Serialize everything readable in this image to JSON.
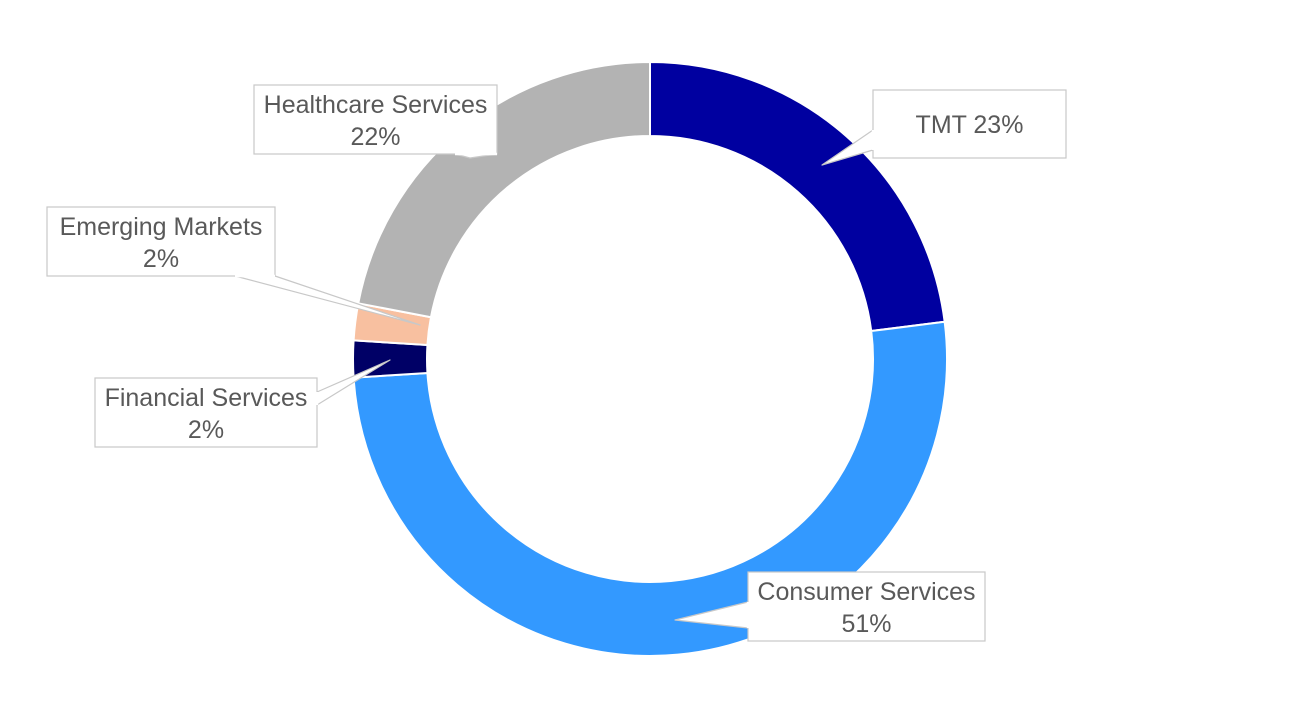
{
  "chart_data": {
    "type": "pie",
    "variant": "donut",
    "title": "",
    "legend": "none",
    "data_labels": "callouts with category name and percentage",
    "slices": [
      {
        "category": "TMT",
        "value": 23,
        "label": "23%",
        "color": "#0000A0"
      },
      {
        "category": "Consumer Services",
        "value": 51,
        "label": "51%",
        "color": "#3399FF"
      },
      {
        "category": "Financial Services",
        "value": 2,
        "label": "2%",
        "color": "#000066"
      },
      {
        "category": "Emerging Markets",
        "value": 2,
        "label": "2%",
        "color": "#F8C0A0"
      },
      {
        "category": "Healthcare Services",
        "value": 22,
        "label": "22%",
        "color": "#B3B3B3"
      }
    ]
  }
}
